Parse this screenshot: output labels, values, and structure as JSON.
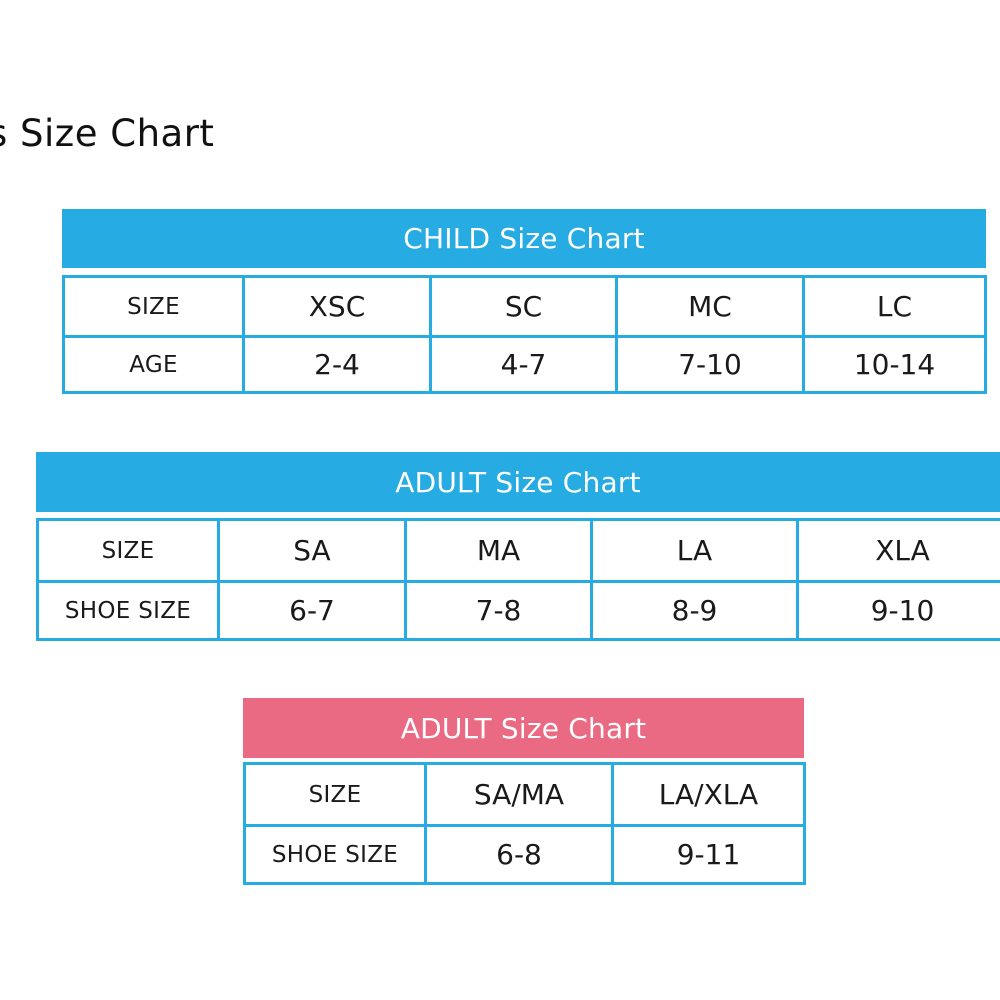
{
  "page_title": "s Size Chart",
  "colors": {
    "blue": "#26abe2",
    "pink": "#ea6a84"
  },
  "child_chart": {
    "title": "CHILD Size Chart",
    "rows": [
      {
        "label": "SIZE",
        "values": [
          "XSC",
          "SC",
          "MC",
          "LC"
        ]
      },
      {
        "label": "AGE",
        "values": [
          "2-4",
          "4-7",
          "7-10",
          "10-14"
        ]
      }
    ]
  },
  "adult_chart_blue": {
    "title": "ADULT Size Chart",
    "rows": [
      {
        "label": "SIZE",
        "values": [
          "SA",
          "MA",
          "LA",
          "XLA"
        ]
      },
      {
        "label": "SHOE SIZE",
        "values": [
          "6-7",
          "7-8",
          "8-9",
          "9-10"
        ]
      }
    ]
  },
  "adult_chart_pink": {
    "title": "ADULT Size Chart",
    "rows": [
      {
        "label": "SIZE",
        "values": [
          "SA/MA",
          "LA/XLA"
        ]
      },
      {
        "label": "SHOE SIZE",
        "values": [
          "6-8",
          "9-11"
        ]
      }
    ]
  }
}
